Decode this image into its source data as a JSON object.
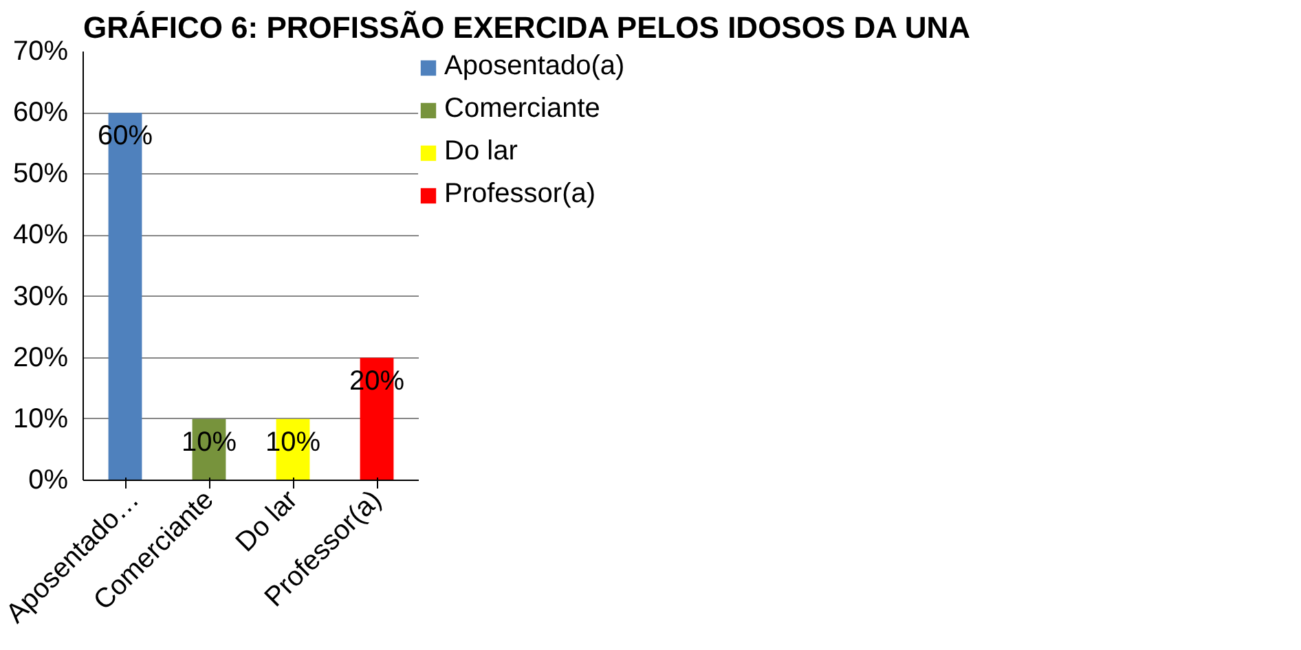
{
  "chart_data": {
    "type": "bar",
    "title": "GRÁFICO 6: PROFISSÃO EXERCIDA PELOS IDOSOS DA UNA",
    "categories": [
      "Aposentado…",
      "Comerciante",
      "Do lar",
      "Professor(a)"
    ],
    "series": [
      {
        "name": "Aposentado(a)",
        "color": "#4f81bd",
        "values": [
          60,
          null,
          null,
          null
        ]
      },
      {
        "name": "Comerciante",
        "color": "#77933c",
        "values": [
          null,
          10,
          null,
          null
        ]
      },
      {
        "name": "Do lar",
        "color": "#ffff00",
        "values": [
          null,
          null,
          10,
          null
        ]
      },
      {
        "name": "Professor(a)",
        "color": "#ff0000",
        "values": [
          null,
          null,
          null,
          20
        ]
      }
    ],
    "value_labels": [
      "60%",
      "10%",
      "10%",
      "20%"
    ],
    "ylim": [
      0,
      70
    ],
    "yticks": [
      {
        "value": 0,
        "label": "0%"
      },
      {
        "value": 10,
        "label": "10%"
      },
      {
        "value": 20,
        "label": "20%"
      },
      {
        "value": 30,
        "label": "30%"
      },
      {
        "value": 40,
        "label": "40%"
      },
      {
        "value": 50,
        "label": "50%"
      },
      {
        "value": 60,
        "label": "60%"
      },
      {
        "value": 70,
        "label": "70%"
      }
    ],
    "grid": "y",
    "legend": "right"
  }
}
